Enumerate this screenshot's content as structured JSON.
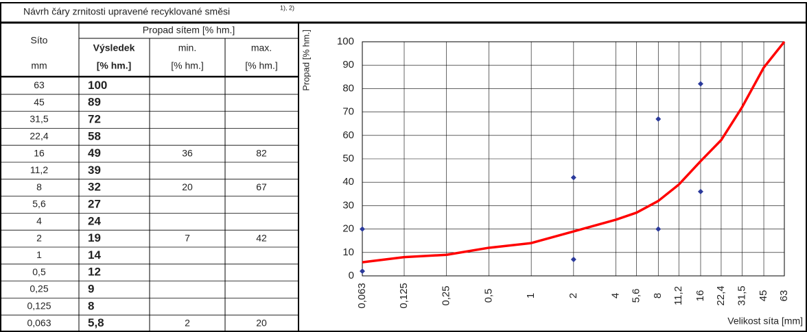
{
  "header": {
    "title": "Návrh čáry zrnitosti upravené recyklované směsi",
    "note": "1), 2)"
  },
  "table": {
    "header": [
      "Síto",
      "Propad sítem [% hm.]",
      "Výsledek",
      "min.",
      "max."
    ],
    "units": [
      "mm",
      "[% hm.]",
      "[% hm.]",
      "[% hm.]"
    ],
    "rows": [
      [
        "63",
        "100",
        null,
        null
      ],
      [
        "45",
        "89",
        null,
        null
      ],
      [
        "31,5",
        "72",
        null,
        null
      ],
      [
        "22,4",
        "58",
        null,
        null
      ],
      [
        "16",
        "49",
        "36",
        "82"
      ],
      [
        "11,2",
        "39",
        null,
        null
      ],
      [
        "8",
        "32",
        "20",
        "67"
      ],
      [
        "5,6",
        "27",
        null,
        null
      ],
      [
        "4",
        "24",
        null,
        null
      ],
      [
        "2",
        "19",
        "7",
        "42"
      ],
      [
        "1",
        "14",
        null,
        null
      ],
      [
        "0,5",
        "12",
        null,
        null
      ],
      [
        "0,25",
        "9",
        null,
        null
      ],
      [
        "0,125",
        "8",
        null,
        null
      ],
      [
        "0,063",
        "5,8",
        "2",
        "20"
      ]
    ]
  },
  "chart_data": {
    "type": "line",
    "ylabel": "Propad [% hm.]",
    "xlabel": "Velikost síta [mm]",
    "x": [
      63,
      45,
      31.5,
      22.4,
      16,
      11.2,
      8,
      5.6,
      4,
      2,
      1,
      0.5,
      0.25,
      0.125,
      0.063
    ],
    "xscale": "log",
    "xlim": [
      0.063,
      63
    ],
    "ylim": [
      0,
      100
    ],
    "xticks": [
      {
        "value": 0.063,
        "label": "0,063"
      },
      {
        "value": 0.125,
        "label": "0,125"
      },
      {
        "value": 0.25,
        "label": "0,25"
      },
      {
        "value": 0.5,
        "label": "0,5"
      },
      1,
      2,
      4,
      {
        "value": 5.6,
        "label": "5,6"
      },
      8,
      {
        "value": 11.2,
        "label": "11,2"
      },
      16,
      {
        "value": 22.4,
        "label": "22,4"
      },
      {
        "value": 31.5,
        "label": "31,5"
      },
      45,
      63
    ],
    "yticks": [
      0,
      10,
      20,
      30,
      40,
      50,
      60,
      70,
      80,
      90,
      100
    ],
    "grid": true,
    "series": [
      {
        "type": "line",
        "color": "#ff0000",
        "values": [
          100,
          89,
          72,
          58,
          49,
          39,
          32,
          27,
          24,
          19,
          14,
          12,
          9,
          8,
          5.8
        ]
      },
      {
        "type": "scatter",
        "color": "#2b3a9b",
        "values": [
          null,
          null,
          null,
          null,
          36,
          null,
          20,
          null,
          null,
          7,
          null,
          null,
          null,
          null,
          2
        ]
      },
      {
        "type": "scatter",
        "color": "#2b3a9b",
        "values": [
          null,
          null,
          null,
          null,
          82,
          null,
          67,
          null,
          null,
          42,
          null,
          null,
          null,
          null,
          20
        ]
      }
    ]
  }
}
